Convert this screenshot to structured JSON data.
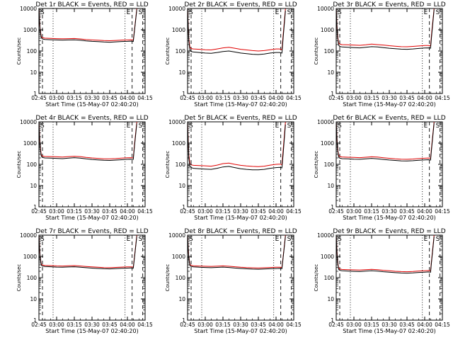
{
  "chart_data": [
    {
      "type": "line",
      "title": "Det 1r BLACK = Events, RED = LLD",
      "xlabel": "Start Time (15-May-07 02:40:20)",
      "ylabel": "Counts/sec",
      "yscale": "log",
      "ylim": [
        1,
        10000
      ],
      "xticks": [
        "02:45",
        "03:00",
        "03:15",
        "03:30",
        "03:45",
        "04:00",
        "04:15"
      ],
      "yticks": [
        "1",
        "10",
        "100",
        "1000",
        "10000"
      ],
      "x_minutes": [
        5,
        6,
        7,
        8,
        10,
        15,
        20,
        25,
        30,
        35,
        40,
        45,
        50,
        55,
        60,
        65,
        70,
        75,
        80,
        83,
        85,
        86,
        88
      ],
      "series": [
        {
          "name": "BLACK = Events",
          "color": "#000000",
          "values": [
            9500,
            900,
            420,
            370,
            350,
            340,
            330,
            325,
            330,
            335,
            320,
            300,
            285,
            275,
            265,
            260,
            270,
            280,
            285,
            290,
            280,
            900,
            9000
          ]
        },
        {
          "name": "RED = LLD",
          "color": "#e00000",
          "values": [
            10000,
            1100,
            480,
            420,
            400,
            390,
            380,
            375,
            380,
            385,
            370,
            345,
            330,
            320,
            310,
            305,
            315,
            325,
            330,
            335,
            330,
            1000,
            10000
          ]
        }
      ]
    },
    {
      "type": "line",
      "title": "Det 2r BLACK = Events, RED = LLD",
      "xlabel": "Start Time (15-May-07 02:40:20)",
      "ylabel": "Counts/sec",
      "yscale": "log",
      "ylim": [
        1,
        10000
      ],
      "xticks": [
        "02:45",
        "03:00",
        "03:15",
        "03:30",
        "03:45",
        "04:00",
        "04:15"
      ],
      "yticks": [
        "1",
        "10",
        "100",
        "1000",
        "10000"
      ],
      "x_minutes": [
        5,
        6,
        7,
        8,
        10,
        15,
        20,
        25,
        30,
        35,
        40,
        45,
        50,
        55,
        60,
        65,
        70,
        75,
        80,
        83,
        85,
        86,
        88
      ],
      "series": [
        {
          "name": "BLACK = Events",
          "color": "#000000",
          "values": [
            9000,
            300,
            110,
            95,
            90,
            85,
            80,
            78,
            85,
            95,
            100,
            90,
            80,
            75,
            70,
            68,
            72,
            80,
            85,
            85,
            80,
            400,
            8000
          ]
        },
        {
          "name": "RED = LLD",
          "color": "#e00000",
          "values": [
            10000,
            400,
            150,
            130,
            125,
            120,
            115,
            112,
            125,
            140,
            150,
            135,
            120,
            112,
            105,
            100,
            105,
            115,
            125,
            125,
            115,
            550,
            10000
          ]
        }
      ]
    },
    {
      "type": "line",
      "title": "Det 3r BLACK = Events, RED = LLD",
      "xlabel": "Start Time (15-May-07 02:40:20)",
      "ylabel": "Counts/sec",
      "yscale": "log",
      "ylim": [
        1,
        10000
      ],
      "xticks": [
        "02:45",
        "03:00",
        "03:15",
        "03:30",
        "03:45",
        "04:00",
        "04:15"
      ],
      "yticks": [
        "1",
        "10",
        "100",
        "1000",
        "10000"
      ],
      "x_minutes": [
        5,
        6,
        7,
        8,
        10,
        15,
        20,
        25,
        30,
        35,
        40,
        45,
        50,
        55,
        60,
        65,
        70,
        75,
        80,
        83,
        85,
        86,
        88
      ],
      "series": [
        {
          "name": "BLACK = Events",
          "color": "#000000",
          "values": [
            9500,
            500,
            190,
            165,
            155,
            150,
            145,
            140,
            150,
            160,
            155,
            145,
            135,
            128,
            122,
            120,
            125,
            132,
            138,
            140,
            135,
            600,
            9000
          ]
        },
        {
          "name": "RED = LLD",
          "color": "#e00000",
          "values": [
            10000,
            650,
            240,
            210,
            200,
            195,
            190,
            185,
            195,
            210,
            200,
            190,
            178,
            168,
            160,
            158,
            165,
            172,
            180,
            182,
            175,
            800,
            10000
          ]
        }
      ]
    },
    {
      "type": "line",
      "title": "Det 4r BLACK = Events, RED = LLD",
      "xlabel": "Start Time (15-May-07 02:40:20)",
      "ylabel": "Counts/sec",
      "yscale": "log",
      "ylim": [
        1,
        10000
      ],
      "xticks": [
        "02:45",
        "03:00",
        "03:15",
        "03:30",
        "03:45",
        "04:00",
        "04:15"
      ],
      "yticks": [
        "1",
        "10",
        "100",
        "1000",
        "10000"
      ],
      "x_minutes": [
        5,
        6,
        7,
        8,
        10,
        15,
        20,
        25,
        30,
        35,
        40,
        45,
        50,
        55,
        60,
        65,
        70,
        75,
        80,
        83,
        85,
        86,
        88
      ],
      "series": [
        {
          "name": "BLACK = Events",
          "color": "#000000",
          "values": [
            9000,
            600,
            240,
            210,
            200,
            195,
            190,
            185,
            195,
            205,
            195,
            180,
            170,
            162,
            155,
            152,
            158,
            165,
            172,
            175,
            170,
            700,
            8500
          ]
        },
        {
          "name": "RED = LLD",
          "color": "#e00000",
          "values": [
            10000,
            750,
            280,
            245,
            235,
            230,
            225,
            220,
            230,
            240,
            230,
            212,
            200,
            190,
            182,
            180,
            186,
            195,
            202,
            205,
            200,
            850,
            10000
          ]
        }
      ]
    },
    {
      "type": "line",
      "title": "Det 5r BLACK = Events, RED = LLD",
      "xlabel": "Start Time (15-May-07 02:40:20)",
      "ylabel": "Counts/sec",
      "yscale": "log",
      "ylim": [
        1,
        10000
      ],
      "xticks": [
        "02:45",
        "03:00",
        "03:15",
        "03:30",
        "03:45",
        "04:00",
        "04:15"
      ],
      "yticks": [
        "1",
        "10",
        "100",
        "1000",
        "10000"
      ],
      "x_minutes": [
        5,
        6,
        7,
        8,
        10,
        15,
        20,
        25,
        30,
        35,
        40,
        45,
        50,
        55,
        60,
        65,
        70,
        75,
        80,
        83,
        85,
        86,
        88
      ],
      "series": [
        {
          "name": "BLACK = Events",
          "color": "#000000",
          "values": [
            8500,
            200,
            80,
            70,
            65,
            62,
            60,
            58,
            65,
            75,
            80,
            70,
            62,
            58,
            55,
            55,
            58,
            65,
            70,
            72,
            68,
            300,
            7500
          ]
        },
        {
          "name": "RED = LLD",
          "color": "#e00000",
          "values": [
            10000,
            300,
            110,
            95,
            90,
            88,
            85,
            82,
            92,
            108,
            115,
            100,
            90,
            84,
            80,
            78,
            82,
            92,
            100,
            102,
            96,
            450,
            10000
          ]
        }
      ]
    },
    {
      "type": "line",
      "title": "Det 6r BLACK = Events, RED = LLD",
      "xlabel": "Start Time (15-May-07 02:40:20)",
      "ylabel": "Counts/sec",
      "yscale": "log",
      "ylim": [
        1,
        10000
      ],
      "xticks": [
        "02:45",
        "03:00",
        "03:15",
        "03:30",
        "03:45",
        "04:00",
        "04:15"
      ],
      "yticks": [
        "1",
        "10",
        "100",
        "1000",
        "10000"
      ],
      "x_minutes": [
        5,
        6,
        7,
        8,
        10,
        15,
        20,
        25,
        30,
        35,
        40,
        45,
        50,
        55,
        60,
        65,
        70,
        75,
        80,
        83,
        85,
        86,
        88
      ],
      "series": [
        {
          "name": "BLACK = Events",
          "color": "#000000",
          "values": [
            9200,
            550,
            220,
            195,
            185,
            180,
            175,
            172,
            180,
            190,
            182,
            170,
            160,
            152,
            146,
            144,
            148,
            155,
            162,
            165,
            160,
            650,
            8800
          ]
        },
        {
          "name": "RED = LLD",
          "color": "#e00000",
          "values": [
            10000,
            700,
            265,
            235,
            222,
            216,
            210,
            206,
            215,
            226,
            218,
            204,
            192,
            182,
            175,
            172,
            178,
            186,
            194,
            198,
            192,
            800,
            10000
          ]
        }
      ]
    },
    {
      "type": "line",
      "title": "Det 7r BLACK = Events, RED = LLD",
      "xlabel": "Start Time (15-May-07 02:40:20)",
      "ylabel": "Counts/sec",
      "yscale": "log",
      "ylim": [
        1,
        10000
      ],
      "xticks": [
        "02:45",
        "03:00",
        "03:15",
        "03:30",
        "03:45",
        "04:00",
        "04:15"
      ],
      "yticks": [
        "1",
        "10",
        "100",
        "1000",
        "10000"
      ],
      "x_minutes": [
        5,
        6,
        7,
        8,
        10,
        15,
        20,
        25,
        30,
        35,
        40,
        45,
        50,
        55,
        60,
        65,
        70,
        75,
        80,
        83,
        85,
        86,
        88
      ],
      "series": [
        {
          "name": "BLACK = Events",
          "color": "#000000",
          "values": [
            9300,
            850,
            390,
            350,
            335,
            325,
            315,
            310,
            318,
            325,
            312,
            295,
            282,
            272,
            264,
            260,
            268,
            276,
            282,
            286,
            278,
            880,
            9000
          ]
        },
        {
          "name": "RED = LLD",
          "color": "#e00000",
          "values": [
            10000,
            1000,
            440,
            395,
            378,
            368,
            358,
            352,
            360,
            368,
            354,
            335,
            320,
            308,
            300,
            296,
            304,
            313,
            320,
            324,
            316,
            980,
            10000
          ]
        }
      ]
    },
    {
      "type": "line",
      "title": "Det 8r BLACK = Events, RED = LLD",
      "xlabel": "Start Time (15-May-07 02:40:20)",
      "ylabel": "Counts/sec",
      "yscale": "log",
      "ylim": [
        1,
        10000
      ],
      "xticks": [
        "02:45",
        "03:00",
        "03:15",
        "03:30",
        "03:45",
        "04:00",
        "04:15"
      ],
      "yticks": [
        "1",
        "10",
        "100",
        "1000",
        "10000"
      ],
      "x_minutes": [
        5,
        6,
        7,
        8,
        10,
        15,
        20,
        25,
        30,
        35,
        40,
        45,
        50,
        55,
        60,
        65,
        70,
        75,
        80,
        83,
        85,
        86,
        88
      ],
      "series": [
        {
          "name": "BLACK = Events",
          "color": "#000000",
          "values": [
            9100,
            800,
            370,
            335,
            320,
            310,
            302,
            296,
            305,
            315,
            302,
            285,
            272,
            262,
            254,
            250,
            256,
            264,
            270,
            274,
            266,
            850,
            8900
          ]
        },
        {
          "name": "RED = LLD",
          "color": "#e00000",
          "values": [
            10000,
            950,
            420,
            380,
            362,
            352,
            344,
            338,
            348,
            358,
            344,
            325,
            310,
            298,
            290,
            285,
            292,
            301,
            308,
            312,
            304,
            950,
            10000
          ]
        }
      ]
    },
    {
      "type": "line",
      "title": "Det 9r BLACK = Events, RED = LLD",
      "xlabel": "Start Time (15-May-07 02:40:20)",
      "ylabel": "Counts/sec",
      "yscale": "log",
      "ylim": [
        1,
        10000
      ],
      "xticks": [
        "02:45",
        "03:00",
        "03:15",
        "03:30",
        "03:45",
        "04:00",
        "04:15"
      ],
      "yticks": [
        "1",
        "10",
        "100",
        "1000",
        "10000"
      ],
      "x_minutes": [
        5,
        6,
        7,
        8,
        10,
        15,
        20,
        25,
        30,
        35,
        40,
        45,
        50,
        55,
        60,
        65,
        70,
        75,
        80,
        83,
        85,
        86,
        88
      ],
      "series": [
        {
          "name": "BLACK = Events",
          "color": "#000000",
          "values": [
            9000,
            600,
            250,
            220,
            210,
            204,
            198,
            194,
            202,
            212,
            204,
            190,
            180,
            172,
            166,
            164,
            168,
            176,
            182,
            186,
            180,
            700,
            8600
          ]
        },
        {
          "name": "RED = LLD",
          "color": "#e00000",
          "values": [
            10000,
            720,
            290,
            256,
            244,
            238,
            232,
            228,
            236,
            248,
            238,
            222,
            210,
            200,
            193,
            190,
            196,
            205,
            212,
            216,
            210,
            820,
            10000
          ]
        }
      ]
    }
  ]
}
